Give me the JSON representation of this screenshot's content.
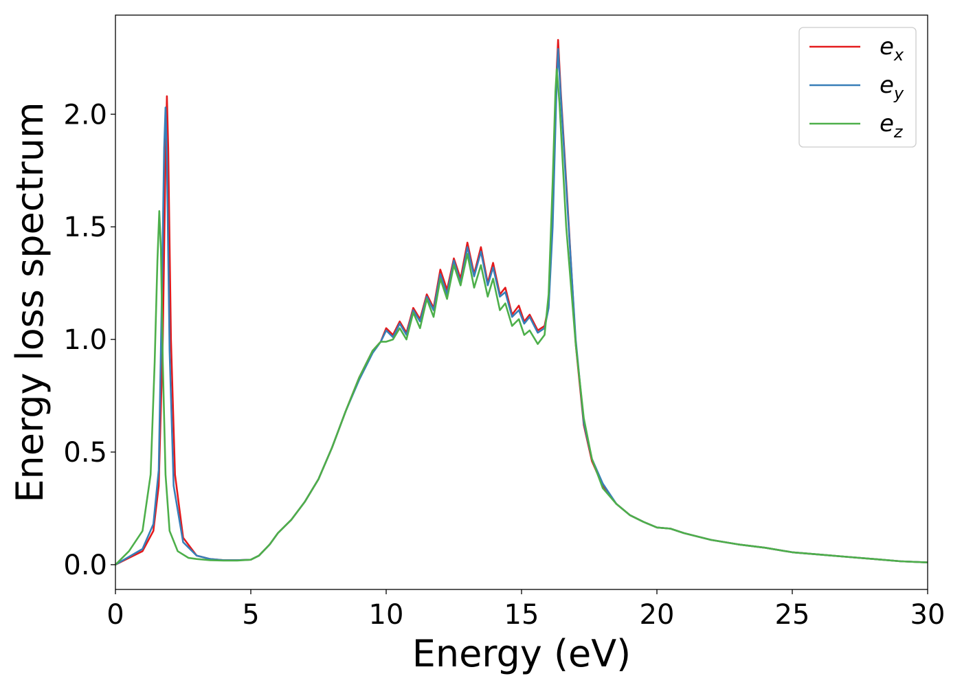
{
  "chart_data": {
    "type": "line",
    "xlabel": "Energy (eV)",
    "ylabel": "Energy loss spectrum",
    "xlim": [
      0,
      30
    ],
    "ylim": [
      -0.11,
      2.44
    ],
    "xticks": [
      0,
      5,
      10,
      15,
      20,
      25,
      30
    ],
    "xtick_labels": [
      "0",
      "5",
      "10",
      "15",
      "20",
      "25",
      "30"
    ],
    "yticks": [
      0.0,
      0.5,
      1.0,
      1.5,
      2.0
    ],
    "ytick_labels": [
      "0.0",
      "0.5",
      "1.0",
      "1.5",
      "2.0"
    ],
    "grid": false,
    "legend": "top-right",
    "series": [
      {
        "name": "e",
        "subscript": "x",
        "color": "#e41a1c",
        "x": [
          0,
          0.5,
          1.0,
          1.4,
          1.6,
          1.75,
          1.85,
          1.9,
          1.95,
          2.05,
          2.2,
          2.5,
          3.0,
          3.5,
          4.0,
          4.5,
          5.0,
          5.3,
          5.7,
          6.0,
          6.5,
          7.0,
          7.5,
          8.0,
          8.5,
          9.0,
          9.5,
          9.8,
          10.0,
          10.25,
          10.5,
          10.75,
          11.0,
          11.25,
          11.5,
          11.75,
          12.0,
          12.25,
          12.5,
          12.75,
          13.0,
          13.25,
          13.5,
          13.75,
          13.95,
          14.2,
          14.4,
          14.65,
          14.9,
          15.1,
          15.3,
          15.6,
          15.85,
          16.0,
          16.15,
          16.3,
          16.35,
          16.45,
          16.7,
          17.0,
          17.3,
          17.6,
          18.0,
          18.5,
          19.0,
          19.5,
          20.0,
          20.5,
          21.0,
          22.0,
          23.0,
          24.0,
          25.0,
          26.0,
          27.0,
          28.0,
          29.0,
          30.0
        ],
        "y": [
          0.0,
          0.03,
          0.06,
          0.15,
          0.35,
          1.0,
          1.8,
          2.08,
          1.85,
          1.0,
          0.4,
          0.12,
          0.04,
          0.025,
          0.02,
          0.02,
          0.022,
          0.04,
          0.09,
          0.14,
          0.2,
          0.28,
          0.38,
          0.52,
          0.68,
          0.83,
          0.95,
          0.99,
          1.05,
          1.02,
          1.08,
          1.03,
          1.14,
          1.09,
          1.2,
          1.14,
          1.31,
          1.22,
          1.36,
          1.27,
          1.43,
          1.29,
          1.41,
          1.25,
          1.34,
          1.2,
          1.23,
          1.11,
          1.15,
          1.08,
          1.11,
          1.04,
          1.06,
          1.15,
          1.55,
          2.2,
          2.33,
          2.1,
          1.6,
          0.98,
          0.62,
          0.46,
          0.35,
          0.27,
          0.22,
          0.19,
          0.165,
          0.16,
          0.14,
          0.11,
          0.09,
          0.075,
          0.055,
          0.045,
          0.035,
          0.025,
          0.015,
          0.01
        ]
      },
      {
        "name": "e",
        "subscript": "y",
        "color": "#377eb8",
        "x": [
          0,
          0.5,
          1.0,
          1.4,
          1.6,
          1.7,
          1.8,
          1.85,
          1.9,
          2.0,
          2.15,
          2.5,
          3.0,
          3.5,
          4.0,
          4.5,
          5.0,
          5.3,
          5.7,
          6.0,
          6.5,
          7.0,
          7.5,
          8.0,
          8.5,
          9.0,
          9.5,
          9.8,
          10.0,
          10.25,
          10.5,
          10.75,
          11.0,
          11.25,
          11.5,
          11.75,
          12.0,
          12.25,
          12.5,
          12.75,
          13.0,
          13.25,
          13.5,
          13.75,
          13.95,
          14.2,
          14.4,
          14.65,
          14.9,
          15.1,
          15.3,
          15.6,
          15.85,
          16.0,
          16.15,
          16.3,
          16.35,
          16.45,
          16.7,
          17.0,
          17.3,
          17.6,
          18.0,
          18.5,
          19.0,
          19.5,
          20.0,
          20.5,
          21.0,
          22.0,
          23.0,
          24.0,
          25.0,
          26.0,
          27.0,
          28.0,
          29.0,
          30.0
        ],
        "y": [
          0.0,
          0.035,
          0.07,
          0.18,
          0.42,
          1.1,
          1.85,
          2.03,
          1.8,
          0.95,
          0.35,
          0.1,
          0.04,
          0.025,
          0.02,
          0.02,
          0.022,
          0.04,
          0.09,
          0.14,
          0.2,
          0.28,
          0.38,
          0.52,
          0.68,
          0.82,
          0.94,
          0.99,
          1.04,
          1.01,
          1.07,
          1.02,
          1.13,
          1.08,
          1.19,
          1.13,
          1.29,
          1.2,
          1.35,
          1.25,
          1.41,
          1.28,
          1.39,
          1.24,
          1.32,
          1.19,
          1.21,
          1.1,
          1.13,
          1.07,
          1.1,
          1.03,
          1.05,
          1.14,
          1.5,
          2.15,
          2.29,
          2.08,
          1.58,
          1.0,
          0.63,
          0.47,
          0.36,
          0.27,
          0.22,
          0.19,
          0.165,
          0.16,
          0.14,
          0.11,
          0.09,
          0.075,
          0.055,
          0.045,
          0.035,
          0.025,
          0.015,
          0.01
        ]
      },
      {
        "name": "e",
        "subscript": "z",
        "color": "#4daf4a",
        "x": [
          0,
          0.5,
          1.0,
          1.3,
          1.45,
          1.55,
          1.62,
          1.68,
          1.75,
          1.85,
          2.0,
          2.3,
          2.7,
          3.0,
          3.5,
          4.0,
          4.5,
          5.0,
          5.3,
          5.7,
          6.0,
          6.5,
          7.0,
          7.5,
          8.0,
          8.5,
          9.0,
          9.5,
          9.8,
          10.0,
          10.25,
          10.5,
          10.75,
          11.0,
          11.25,
          11.5,
          11.75,
          12.0,
          12.25,
          12.5,
          12.75,
          13.0,
          13.25,
          13.5,
          13.75,
          13.95,
          14.2,
          14.4,
          14.65,
          14.9,
          15.1,
          15.3,
          15.6,
          15.85,
          16.0,
          16.15,
          16.25,
          16.3,
          16.4,
          16.65,
          17.0,
          17.3,
          17.6,
          18.0,
          18.5,
          19.0,
          19.5,
          20.0,
          20.5,
          21.0,
          22.0,
          23.0,
          24.0,
          25.0,
          26.0,
          27.0,
          28.0,
          29.0,
          30.0
        ],
        "y": [
          0.0,
          0.06,
          0.15,
          0.4,
          0.9,
          1.35,
          1.57,
          1.4,
          0.9,
          0.4,
          0.15,
          0.06,
          0.03,
          0.025,
          0.02,
          0.018,
          0.018,
          0.022,
          0.04,
          0.09,
          0.14,
          0.2,
          0.28,
          0.38,
          0.52,
          0.68,
          0.83,
          0.95,
          0.99,
          0.99,
          1.0,
          1.05,
          1.0,
          1.12,
          1.05,
          1.18,
          1.1,
          1.27,
          1.18,
          1.33,
          1.24,
          1.38,
          1.23,
          1.33,
          1.19,
          1.27,
          1.13,
          1.16,
          1.06,
          1.09,
          1.02,
          1.04,
          0.98,
          1.02,
          1.2,
          1.7,
          2.1,
          2.2,
          2.05,
          1.5,
          0.98,
          0.65,
          0.47,
          0.34,
          0.27,
          0.22,
          0.19,
          0.165,
          0.16,
          0.14,
          0.11,
          0.09,
          0.075,
          0.055,
          0.045,
          0.035,
          0.025,
          0.015,
          0.01
        ]
      }
    ]
  }
}
